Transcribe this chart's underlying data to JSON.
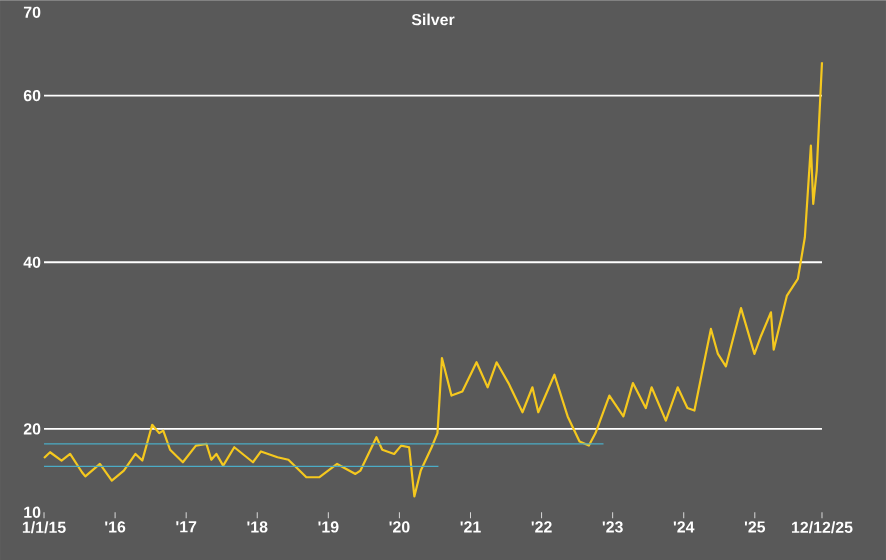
{
  "chart_data": {
    "type": "line",
    "title": "Silver",
    "xlim": [
      "2015-01-01",
      "2025-12-12"
    ],
    "xticks": [
      {
        "value": "2015-01-01",
        "label": "1/1/15"
      },
      {
        "value": "2016-01-01",
        "label": "'16"
      },
      {
        "value": "2017-01-01",
        "label": "'17"
      },
      {
        "value": "2018-01-01",
        "label": "'18"
      },
      {
        "value": "2019-01-01",
        "label": "'19"
      },
      {
        "value": "2020-01-01",
        "label": "'20"
      },
      {
        "value": "2021-01-01",
        "label": "'21"
      },
      {
        "value": "2022-01-01",
        "label": "'22"
      },
      {
        "value": "2023-01-01",
        "label": "'23"
      },
      {
        "value": "2024-01-01",
        "label": "'24"
      },
      {
        "value": "2025-01-01",
        "label": "'25"
      },
      {
        "value": "2025-12-12",
        "label": "12/12/25"
      }
    ],
    "ylim": [
      10,
      70
    ],
    "yticks": [
      10,
      20,
      40,
      60,
      70
    ],
    "grid": "y",
    "series": [
      {
        "color": "#f5c81e",
        "x": [
          "2015-01-01",
          "2015-02-01",
          "2015-04-01",
          "2015-05-15",
          "2015-07-15",
          "2015-08-01",
          "2015-10-15",
          "2015-12-15",
          "2016-02-15",
          "2016-04-15",
          "2016-05-20",
          "2016-07-10",
          "2016-08-15",
          "2016-09-05",
          "2016-10-10",
          "2016-12-15",
          "2017-02-20",
          "2017-04-15",
          "2017-05-10",
          "2017-06-05",
          "2017-07-10",
          "2017-09-05",
          "2017-12-10",
          "2018-01-20",
          "2018-04-15",
          "2018-06-10",
          "2018-08-15",
          "2018-09-10",
          "2018-11-15",
          "2019-02-15",
          "2019-05-20",
          "2019-06-15",
          "2019-09-05",
          "2019-10-05",
          "2019-12-05",
          "2020-01-10",
          "2020-02-20",
          "2020-03-18",
          "2020-04-20",
          "2020-06-15",
          "2020-07-15",
          "2020-08-07",
          "2020-09-25",
          "2020-11-20",
          "2021-02-01",
          "2021-03-30",
          "2021-05-15",
          "2021-07-15",
          "2021-09-25",
          "2021-11-15",
          "2021-12-15",
          "2022-03-08",
          "2022-05-15",
          "2022-07-15",
          "2022-09-01",
          "2022-10-05",
          "2022-12-15",
          "2023-02-25",
          "2023-04-15",
          "2023-06-20",
          "2023-07-20",
          "2023-10-01",
          "2023-12-01",
          "2024-01-20",
          "2024-02-25",
          "2024-04-15",
          "2024-05-20",
          "2024-06-25",
          "2024-08-05",
          "2024-10-22",
          "2024-12-30",
          "2025-01-30",
          "2025-03-25",
          "2025-04-08",
          "2025-06-15",
          "2025-08-10",
          "2025-09-15",
          "2025-10-16",
          "2025-10-28",
          "2025-11-15",
          "2025-12-12"
        ],
        "values": [
          16.5,
          17.2,
          16.2,
          17.0,
          14.8,
          14.3,
          15.8,
          13.8,
          15.0,
          17.0,
          16.2,
          20.5,
          19.5,
          19.8,
          17.5,
          16.0,
          18.0,
          18.2,
          16.3,
          17.0,
          15.6,
          17.8,
          16.0,
          17.3,
          16.6,
          16.3,
          14.8,
          14.2,
          14.2,
          15.8,
          14.6,
          15.0,
          19.0,
          17.5,
          17.0,
          18.0,
          17.8,
          11.9,
          15.0,
          17.8,
          19.5,
          28.5,
          24.0,
          24.5,
          28.0,
          25.0,
          28.0,
          25.5,
          22.0,
          25.0,
          22.0,
          26.5,
          21.5,
          18.5,
          18.0,
          19.5,
          24.0,
          21.5,
          25.5,
          22.5,
          25.0,
          21.0,
          25.0,
          22.5,
          22.2,
          28.0,
          32.0,
          29.0,
          27.5,
          34.5,
          29.0,
          31.0,
          34.0,
          29.5,
          36.0,
          38.0,
          43.0,
          54.0,
          47.0,
          51.0,
          64.0
        ]
      },
      {
        "color": "#4bacc6",
        "x": [
          "2015-01-01",
          "2022-11-15"
        ],
        "values": [
          18.2,
          18.2
        ]
      },
      {
        "color": "#4bacc6",
        "x": [
          "2015-01-01",
          "2020-07-20"
        ],
        "values": [
          15.5,
          15.5
        ]
      }
    ]
  }
}
